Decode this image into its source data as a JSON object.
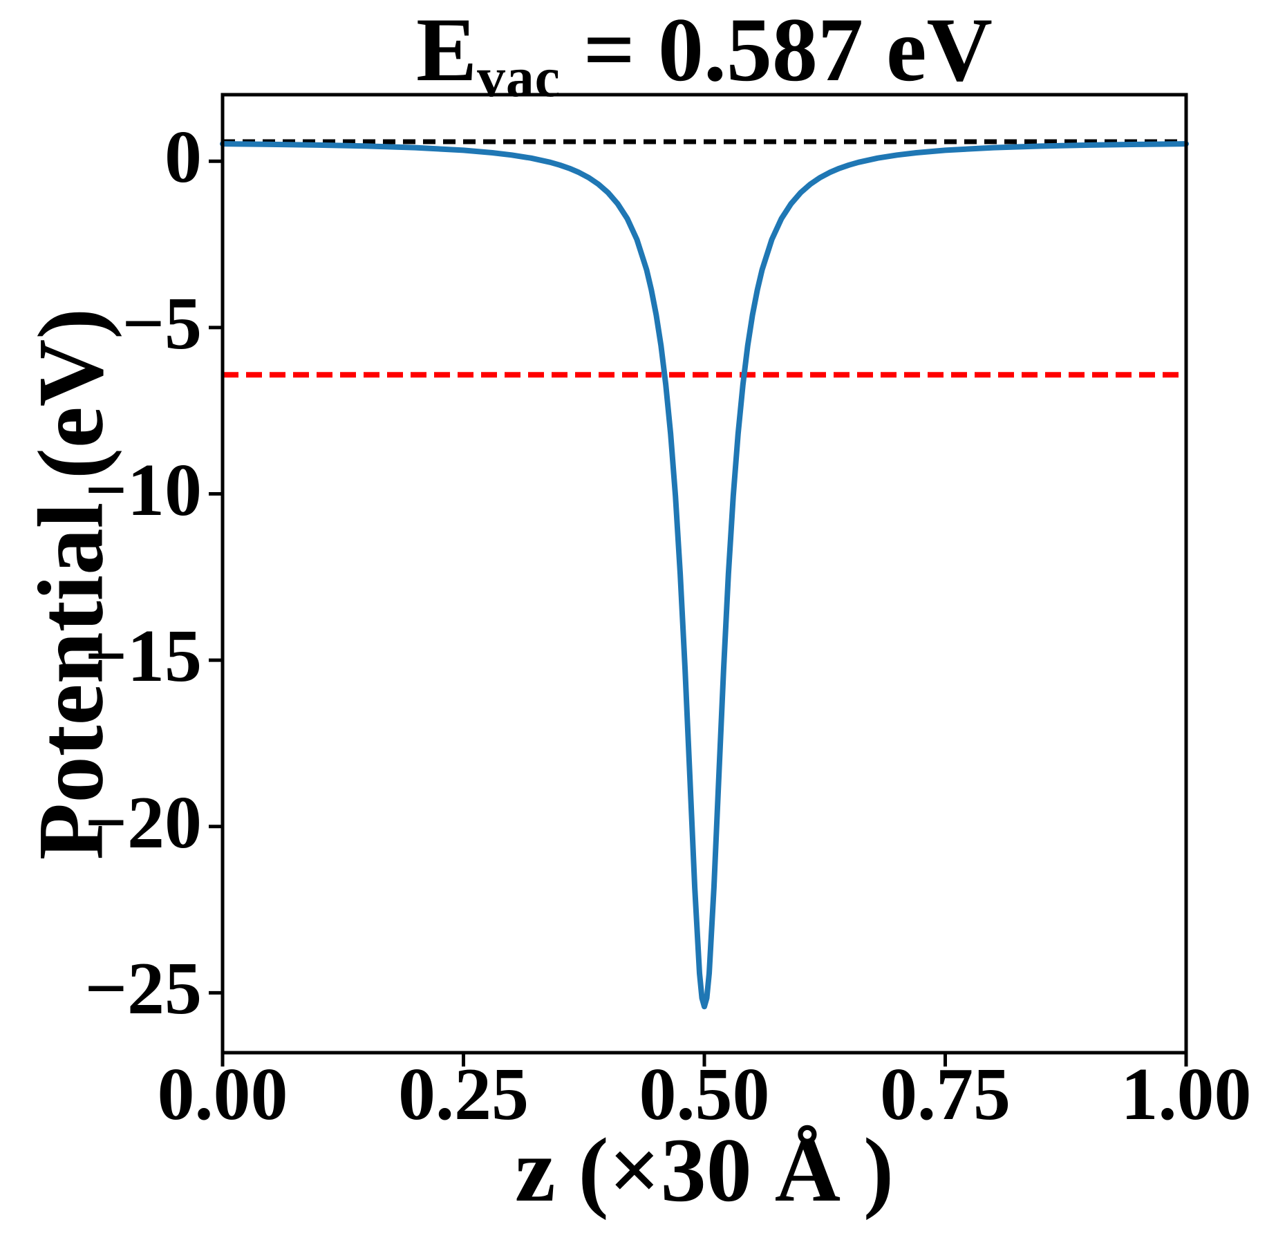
{
  "title": {
    "prefix": "E",
    "subscript": "vac",
    "suffix": " = 0.587 eV",
    "full": "E_vac = 0.587 eV"
  },
  "axes": {
    "xlabel": "z (×30 Å )",
    "ylabel": "Potential (eV)"
  },
  "colors": {
    "curve": "#1f77b4",
    "vacuum_line": "#000000",
    "reference_line": "#ff0000",
    "frame": "#000000",
    "background": "#ffffff"
  },
  "chart_data": {
    "type": "line",
    "title": "E_vac = 0.587 eV",
    "xlabel": "z (×30 Å )",
    "ylabel": "Potential (eV)",
    "xlim": [
      0,
      1
    ],
    "ylim": [
      -26.8,
      2.0
    ],
    "grid": false,
    "legend_position": "none",
    "x_ticks": {
      "values": [
        0,
        0.25,
        0.5,
        0.75,
        1
      ],
      "labels": [
        "0.00",
        "0.25",
        "0.50",
        "0.75",
        "1.00"
      ]
    },
    "y_ticks": {
      "values": [
        0,
        -5,
        -10,
        -15,
        -20,
        -25
      ],
      "labels": [
        "0",
        "−5",
        "−10",
        "−15",
        "−20",
        "−25"
      ]
    },
    "series": [
      {
        "name": "planar-averaged-potential",
        "type": "line",
        "style": "solid",
        "color": "#1f77b4",
        "line_width": 8,
        "x": [
          0,
          0.05,
          0.1,
          0.15,
          0.2,
          0.25,
          0.28,
          0.3,
          0.32,
          0.34,
          0.35,
          0.36,
          0.37,
          0.38,
          0.39,
          0.4,
          0.41,
          0.42,
          0.43,
          0.44,
          0.445,
          0.45,
          0.455,
          0.46,
          0.465,
          0.47,
          0.475,
          0.48,
          0.485,
          0.49,
          0.495,
          0.4975,
          0.5,
          0.5025,
          0.505,
          0.51,
          0.515,
          0.52,
          0.525,
          0.53,
          0.535,
          0.54,
          0.545,
          0.55,
          0.555,
          0.56,
          0.57,
          0.58,
          0.59,
          0.6,
          0.61,
          0.62,
          0.63,
          0.64,
          0.65,
          0.66,
          0.68,
          0.7,
          0.72,
          0.75,
          0.8,
          0.85,
          0.9,
          0.95,
          1.0
        ],
        "y": [
          0.522,
          0.507,
          0.486,
          0.455,
          0.408,
          0.33,
          0.255,
          0.187,
          0.095,
          -0.033,
          -0.116,
          -0.216,
          -0.34,
          -0.494,
          -0.69,
          -0.942,
          -1.276,
          -1.726,
          -2.354,
          -3.259,
          -3.865,
          -4.613,
          -5.545,
          -6.716,
          -8.197,
          -10.069,
          -12.413,
          -15.267,
          -18.531,
          -21.827,
          -24.413,
          -25.156,
          -25.413,
          -25.156,
          -24.413,
          -21.827,
          -18.531,
          -15.267,
          -12.413,
          -10.069,
          -8.197,
          -6.716,
          -5.545,
          -4.613,
          -3.865,
          -3.259,
          -2.354,
          -1.726,
          -1.276,
          -0.942,
          -0.69,
          -0.494,
          -0.34,
          -0.216,
          -0.116,
          -0.033,
          0.095,
          0.187,
          0.255,
          0.33,
          0.408,
          0.455,
          0.486,
          0.507,
          0.522
        ]
      },
      {
        "name": "vacuum-level-line",
        "type": "hline",
        "style": "dashed",
        "color": "#000000",
        "line_width": 7,
        "dash": [
          18,
          11
        ],
        "value": 0.587
      },
      {
        "name": "reference-level-line",
        "type": "hline",
        "style": "dashed",
        "color": "#ff0000",
        "line_width": 8,
        "dash": [
          23,
          11
        ],
        "value": -6.42
      }
    ],
    "annotations": {
      "E_vac_eV": 0.587,
      "potential_minimum": {
        "z": 0.5,
        "value_eV": -25.41
      }
    }
  }
}
